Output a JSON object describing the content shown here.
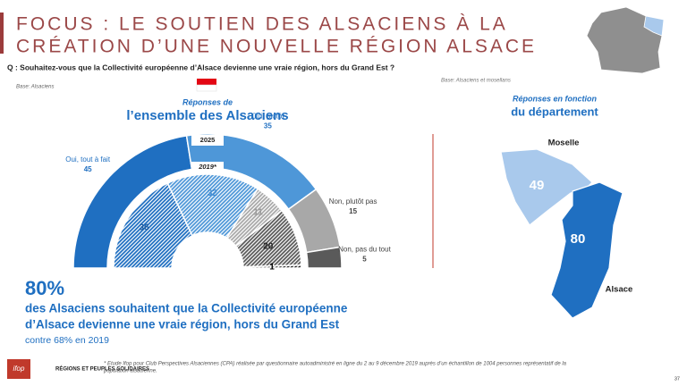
{
  "title_lines": [
    "FOCUS : LE SOUTIEN DES ALSACIENS À LA",
    "CRÉATION D’UNE NOUVELLE RÉGION ALSACE"
  ],
  "question": "Q : Souhaitez-vous que la Collectivité européenne d’Alsace devienne une vraie région, hors du Grand Est ?",
  "base_left": "Base: Alsaciens",
  "base_right": "Base: Alsaciens et mosellans",
  "chart_data": [
    {
      "type": "half-donut",
      "subtitle": "Réponses de",
      "title": "l’ensemble des Alsaciens",
      "categories": [
        "Oui, tout à fait",
        "Oui, plutôt",
        "Non, plutôt pas",
        "Non, pas du tout",
        null
      ],
      "series": [
        {
          "name": "2025",
          "colors": [
            "#1f6fc1",
            "#4e97d8",
            "#a8a8a8",
            "#5a5a5a",
            "#333333"
          ],
          "values": [
            45,
            35,
            15,
            5,
            null
          ]
        },
        {
          "name": "2019*",
          "colors": [
            "#1f6fc1",
            "#4e97d8",
            "#a8a8a8",
            "#5a5a5a",
            "#222222"
          ],
          "values": [
            36,
            32,
            11,
            20,
            1
          ]
        }
      ]
    },
    {
      "type": "map",
      "subtitle": "Réponses en fonction",
      "title": "du département",
      "categories": [
        "Moselle",
        "Alsace"
      ],
      "values": [
        49,
        80
      ],
      "colors": [
        "#a9c9ec",
        "#1f6fc1"
      ]
    }
  ],
  "highlight": {
    "figure": "80%",
    "text_lines": [
      "des Alsaciens souhaitent que la Collectivité européenne",
      "d’Alsace devienne une vraie région, hors du Grand Est"
    ],
    "comparison": "contre 68% en 2019"
  },
  "footnote_lines": [
    "* Etude Ifop pour Club Perspectives Alsaciennes (CPA) réalisée par questionnaire autoadministré en ligne du 2 au 9 décembre 2019 auprès d’un échantillon de 1004 personnes représentatif de la",
    "population alsacienne."
  ],
  "logos": [
    "ifop",
    "RÉGIONS ET PEUPLES SOLIDAIRES"
  ],
  "page_number": "37"
}
